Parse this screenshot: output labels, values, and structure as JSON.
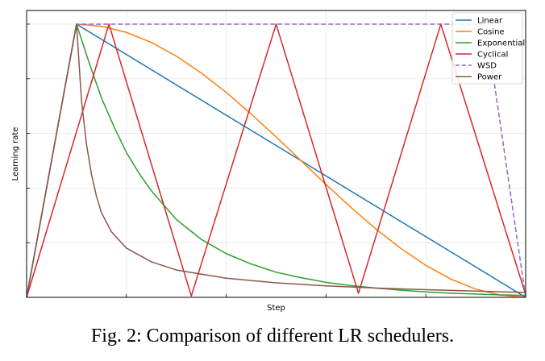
{
  "caption": "Fig. 2: Comparison of different LR schedulers.",
  "chart_data": {
    "type": "line",
    "title": "",
    "xlabel": "Step",
    "ylabel": "Learning rate",
    "xlim": [
      0,
      100
    ],
    "ylim": [
      0,
      1.05
    ],
    "grid": true,
    "x_ticks_labeled": false,
    "y_ticks_labeled": false,
    "legend_position": "top-right",
    "series": [
      {
        "name": "Linear",
        "color": "#1f77b4",
        "dash": "solid",
        "points": [
          [
            0,
            0
          ],
          [
            10,
            1
          ],
          [
            100,
            0
          ]
        ]
      },
      {
        "name": "Cosine",
        "color": "#ff7f0e",
        "dash": "solid",
        "points": [
          [
            0,
            0
          ],
          [
            10,
            1
          ],
          [
            15,
            0.992
          ],
          [
            20,
            0.97
          ],
          [
            25,
            0.933
          ],
          [
            30,
            0.883
          ],
          [
            35,
            0.821
          ],
          [
            40,
            0.75
          ],
          [
            45,
            0.671
          ],
          [
            50,
            0.587
          ],
          [
            55,
            0.5
          ],
          [
            60,
            0.413
          ],
          [
            65,
            0.329
          ],
          [
            70,
            0.25
          ],
          [
            75,
            0.179
          ],
          [
            80,
            0.117
          ],
          [
            85,
            0.067
          ],
          [
            90,
            0.03
          ],
          [
            95,
            0.008
          ],
          [
            100,
            0
          ]
        ]
      },
      {
        "name": "Exponential",
        "color": "#2ca02c",
        "dash": "solid",
        "points": [
          [
            0,
            0
          ],
          [
            10,
            1
          ],
          [
            12.5,
            0.86
          ],
          [
            15,
            0.73
          ],
          [
            17.5,
            0.625
          ],
          [
            20,
            0.53
          ],
          [
            22.5,
            0.455
          ],
          [
            25,
            0.39
          ],
          [
            30,
            0.285
          ],
          [
            35,
            0.212
          ],
          [
            40,
            0.16
          ],
          [
            45,
            0.122
          ],
          [
            50,
            0.092
          ],
          [
            55,
            0.072
          ],
          [
            60,
            0.055
          ],
          [
            65,
            0.043
          ],
          [
            70,
            0.034
          ],
          [
            75,
            0.026
          ],
          [
            80,
            0.02
          ],
          [
            85,
            0.015
          ],
          [
            90,
            0.012
          ],
          [
            95,
            0.009
          ],
          [
            100,
            0.007
          ]
        ]
      },
      {
        "name": "Cyclical",
        "color": "#d62728",
        "dash": "solid",
        "points": [
          [
            0,
            0
          ],
          [
            16.5,
            1
          ],
          [
            33,
            0.005
          ],
          [
            50,
            1
          ],
          [
            66.5,
            0.015
          ],
          [
            83,
            1
          ],
          [
            100,
            0.01
          ]
        ]
      },
      {
        "name": "WSD",
        "color": "#9467bd",
        "dash": "dashed",
        "points": [
          [
            0,
            0
          ],
          [
            10,
            1
          ],
          [
            92,
            1
          ],
          [
            100,
            0
          ]
        ]
      },
      {
        "name": "Power",
        "color": "#8c564b",
        "dash": "solid",
        "points": [
          [
            0,
            0
          ],
          [
            10,
            1
          ],
          [
            11,
            0.72
          ],
          [
            12,
            0.56
          ],
          [
            13,
            0.45
          ],
          [
            14,
            0.37
          ],
          [
            15,
            0.31
          ],
          [
            17,
            0.24
          ],
          [
            20,
            0.18
          ],
          [
            25,
            0.13
          ],
          [
            30,
            0.1
          ],
          [
            40,
            0.07
          ],
          [
            50,
            0.053
          ],
          [
            60,
            0.042
          ],
          [
            70,
            0.034
          ],
          [
            80,
            0.028
          ],
          [
            90,
            0.023
          ],
          [
            100,
            0.018
          ]
        ]
      }
    ]
  }
}
